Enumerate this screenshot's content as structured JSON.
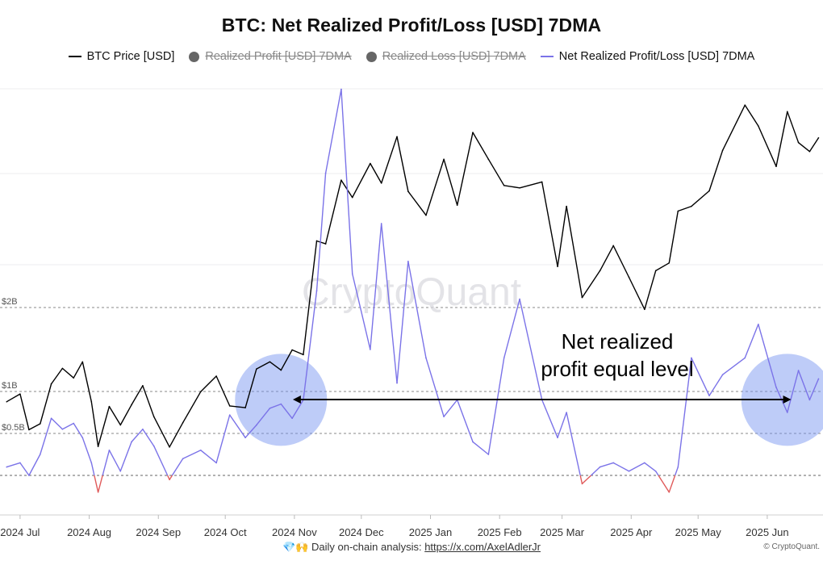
{
  "title": "BTC: Net Realized Profit/Loss [USD] 7DMA",
  "legend": [
    {
      "label": "BTC Price [USD]",
      "color": "#000000",
      "style": "line",
      "enabled": true
    },
    {
      "label": "Realized Profit [USD] 7DMA",
      "color": "#666666",
      "style": "dot",
      "enabled": false
    },
    {
      "label": "Realized Loss [USD] 7DMA",
      "color": "#666666",
      "style": "dot",
      "enabled": false
    },
    {
      "label": "Net Realized Profit/Loss [USD] 7DMA",
      "color": "#7b73e8",
      "style": "line",
      "enabled": true
    }
  ],
  "watermark": "CryptoQuant",
  "annotation": "Net realized\nprofit equal level",
  "footer": {
    "icons": "💎🙌",
    "text": "Daily on-chain analysis:",
    "link": "https://x.com/AxelAdlerJr"
  },
  "credit": "© CryptoQuant.",
  "colors": {
    "price": "#000000",
    "net_positive": "#7b73e8",
    "net_negative": "#e05a5a",
    "highlight": "#6f8ff0"
  },
  "chart_data": {
    "type": "line",
    "title": "BTC: Net Realized Profit/Loss [USD] 7DMA",
    "x_ticks": [
      "2024 Jul",
      "2024 Aug",
      "2024 Sep",
      "2024 Oct",
      "2024 Nov",
      "2024 Dec",
      "2025 Jan",
      "2025 Feb",
      "2025 Mar",
      "2025 Apr",
      "2025 May",
      "2025 Jun"
    ],
    "y_ticks": [
      {
        "label": "$2B",
        "value": 2.0
      },
      {
        "label": "$1B",
        "value": 1.0
      },
      {
        "label": "$0.5B",
        "value": 0.5
      }
    ],
    "reference_line_value": 1.0,
    "grid": true,
    "series": [
      {
        "name": "BTC Price [USD]",
        "unit": "USD",
        "x": [
          "2024-06-25",
          "2024-07-01",
          "2024-07-05",
          "2024-07-10",
          "2024-07-15",
          "2024-07-20",
          "2024-07-25",
          "2024-07-29",
          "2024-08-02",
          "2024-08-05",
          "2024-08-10",
          "2024-08-15",
          "2024-08-20",
          "2024-08-25",
          "2024-08-30",
          "2024-09-06",
          "2024-09-12",
          "2024-09-20",
          "2024-09-27",
          "2024-10-03",
          "2024-10-10",
          "2024-10-15",
          "2024-10-21",
          "2024-10-26",
          "2024-10-31",
          "2024-11-05",
          "2024-11-11",
          "2024-11-15",
          "2024-11-22",
          "2024-11-27",
          "2024-12-05",
          "2024-12-10",
          "2024-12-17",
          "2024-12-22",
          "2024-12-30",
          "2025-01-07",
          "2025-01-13",
          "2025-01-20",
          "2025-01-27",
          "2025-02-03",
          "2025-02-10",
          "2025-02-20",
          "2025-02-27",
          "2025-03-03",
          "2025-03-10",
          "2025-03-18",
          "2025-03-24",
          "2025-03-31",
          "2025-04-07",
          "2025-04-12",
          "2025-04-18",
          "2025-04-22",
          "2025-04-28",
          "2025-05-06",
          "2025-05-12",
          "2025-05-22",
          "2025-05-28",
          "2025-06-05",
          "2025-06-10",
          "2025-06-15",
          "2025-06-20",
          "2025-06-24"
        ],
        "values": [
          61500,
          62800,
          56800,
          57800,
          64500,
          67100,
          65500,
          68200,
          61500,
          54000,
          60700,
          57600,
          61000,
          64200,
          59000,
          53900,
          58000,
          63200,
          65800,
          60800,
          60500,
          67000,
          68200,
          66800,
          70200,
          69400,
          88500,
          88000,
          98700,
          95800,
          101500,
          98200,
          106000,
          96800,
          92800,
          102200,
          94500,
          106700,
          102200,
          97800,
          97400,
          98400,
          84200,
          94300,
          79000,
          83500,
          87700,
          82400,
          77000,
          83500,
          84800,
          93500,
          94300,
          96900,
          103700,
          111300,
          107800,
          101000,
          110200,
          105000,
          103500,
          105800
        ]
      },
      {
        "name": "Net Realized Profit/Loss [USD] 7DMA",
        "unit": "USD billions",
        "x": [
          "2024-06-25",
          "2024-07-01",
          "2024-07-05",
          "2024-07-10",
          "2024-07-15",
          "2024-07-20",
          "2024-07-25",
          "2024-07-29",
          "2024-08-02",
          "2024-08-05",
          "2024-08-10",
          "2024-08-15",
          "2024-08-20",
          "2024-08-25",
          "2024-08-30",
          "2024-09-06",
          "2024-09-12",
          "2024-09-20",
          "2024-09-27",
          "2024-10-03",
          "2024-10-10",
          "2024-10-15",
          "2024-10-21",
          "2024-10-26",
          "2024-10-31",
          "2024-11-05",
          "2024-11-11",
          "2024-11-15",
          "2024-11-22",
          "2024-11-27",
          "2024-12-05",
          "2024-12-10",
          "2024-12-17",
          "2024-12-22",
          "2024-12-30",
          "2025-01-07",
          "2025-01-13",
          "2025-01-20",
          "2025-01-27",
          "2025-02-03",
          "2025-02-10",
          "2025-02-20",
          "2025-02-27",
          "2025-03-03",
          "2025-03-10",
          "2025-03-18",
          "2025-03-24",
          "2025-03-31",
          "2025-04-07",
          "2025-04-12",
          "2025-04-18",
          "2025-04-22",
          "2025-04-28",
          "2025-05-06",
          "2025-05-12",
          "2025-05-22",
          "2025-05-28",
          "2025-06-05",
          "2025-06-10",
          "2025-06-15",
          "2025-06-20",
          "2025-06-24"
        ],
        "values": [
          0.1,
          0.15,
          0.0,
          0.25,
          0.68,
          0.55,
          0.62,
          0.45,
          0.15,
          -0.2,
          0.3,
          0.05,
          0.4,
          0.55,
          0.35,
          -0.05,
          0.2,
          0.3,
          0.15,
          0.72,
          0.45,
          0.6,
          0.8,
          0.85,
          0.68,
          0.9,
          2.2,
          3.6,
          4.6,
          2.4,
          1.5,
          3.0,
          1.1,
          2.55,
          1.4,
          0.7,
          0.9,
          0.4,
          0.25,
          1.4,
          2.1,
          0.9,
          0.45,
          0.75,
          -0.1,
          0.1,
          0.15,
          0.05,
          0.15,
          0.05,
          -0.2,
          0.1,
          1.4,
          0.95,
          1.2,
          1.4,
          1.8,
          1.05,
          0.75,
          1.25,
          0.9,
          1.15
        ]
      }
    ]
  }
}
